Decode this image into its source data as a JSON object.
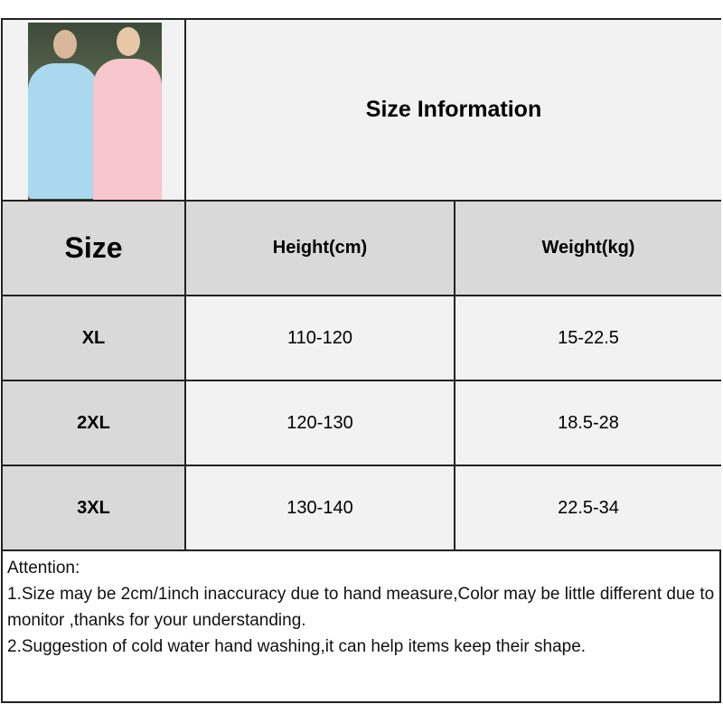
{
  "title": "Size Information",
  "photo": {
    "description_icon": "product-photo-children-raincoats"
  },
  "columns": [
    "Size",
    "Height(cm)",
    "Weight(kg)"
  ],
  "rows": [
    {
      "size": "XL",
      "height": "110-120",
      "weight": "15-22.5"
    },
    {
      "size": "2XL",
      "height": "120-130",
      "weight": "18.5-28"
    },
    {
      "size": "3XL",
      "height": "130-140",
      "weight": "22.5-34"
    }
  ],
  "notes": {
    "heading": "Attention:",
    "line1": "1.Size may be 2cm/1inch inaccuracy due to hand measure,Color may be little different due to monitor ,thanks for your understanding.",
    "line2": "2.Suggestion of cold water hand washing,it can help items keep their shape."
  },
  "colors": {
    "header_gray": "#d9d9d9",
    "cell_light": "#f2f2f2",
    "border": "#222222"
  }
}
